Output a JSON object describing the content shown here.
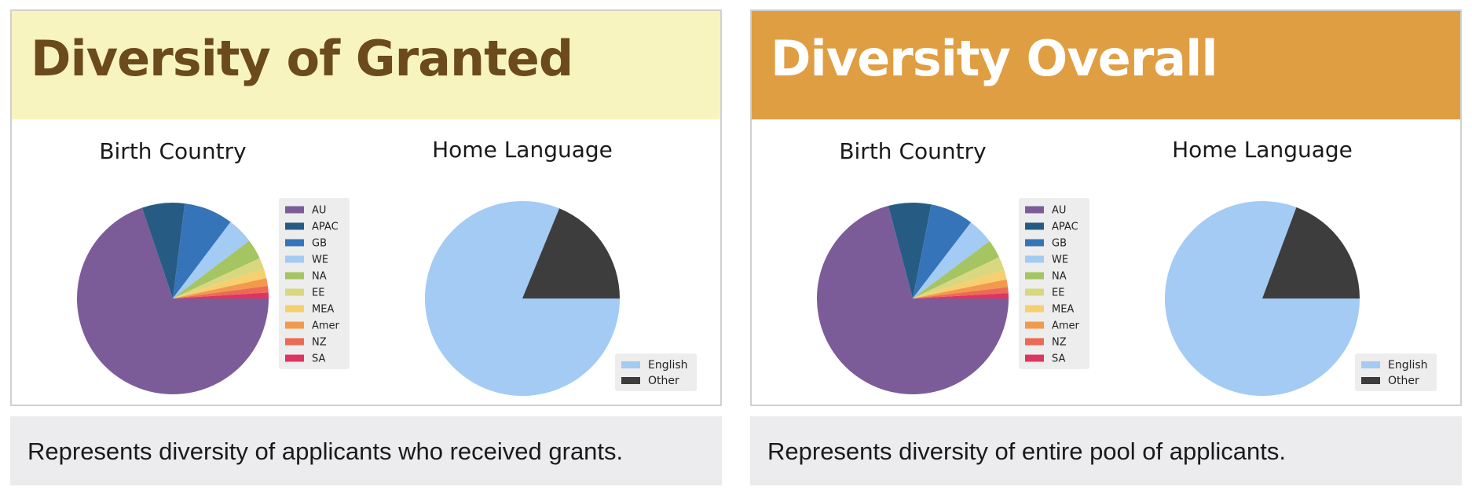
{
  "panels": [
    {
      "banner_title": "Diversity of Granted",
      "caption": "Represents diversity of applicants who received grants."
    },
    {
      "banner_title": "Diversity Overall",
      "caption": "Represents diversity of entire pool of applicants."
    }
  ],
  "colors": {
    "AU": "#7b5c99",
    "APAC": "#265c83",
    "GB": "#3574b8",
    "WE": "#a3cbf4",
    "NA": "#a5c562",
    "EE": "#d9d881",
    "MEA": "#f6cf6f",
    "Amer": "#f19a4d",
    "NZ": "#ec6a55",
    "SA": "#dc3561",
    "English": "#a3cbf4",
    "Other": "#3d3d3d"
  },
  "chart_data": [
    {
      "type": "pie",
      "title": "Birth Country",
      "panel": "Diversity of Granted",
      "categories": [
        "AU",
        "APAC",
        "GB",
        "WE",
        "NA",
        "EE",
        "MEA",
        "Amer",
        "NZ",
        "SA"
      ],
      "values": [
        69.8,
        7.2,
        8.3,
        4.4,
        3.4,
        1.9,
        1.6,
        1.3,
        1.1,
        1.0
      ],
      "legend": "right"
    },
    {
      "type": "pie",
      "title": "Home Language",
      "panel": "Diversity of Granted",
      "categories": [
        "English",
        "Other"
      ],
      "values": [
        81.2,
        18.8
      ],
      "legend": "bottom-right"
    },
    {
      "type": "pie",
      "title": "Birth Country",
      "panel": "Diversity Overall",
      "categories": [
        "AU",
        "APAC",
        "GB",
        "WE",
        "NA",
        "EE",
        "MEA",
        "Amer",
        "NZ",
        "SA"
      ],
      "values": [
        70.9,
        7.2,
        7.3,
        4.4,
        3.1,
        2.3,
        1.6,
        1.3,
        1.0,
        0.9
      ],
      "legend": "right"
    },
    {
      "type": "pie",
      "title": "Home Language",
      "panel": "Diversity Overall",
      "categories": [
        "English",
        "Other"
      ],
      "values": [
        80.7,
        19.3
      ],
      "legend": "bottom-right"
    }
  ]
}
